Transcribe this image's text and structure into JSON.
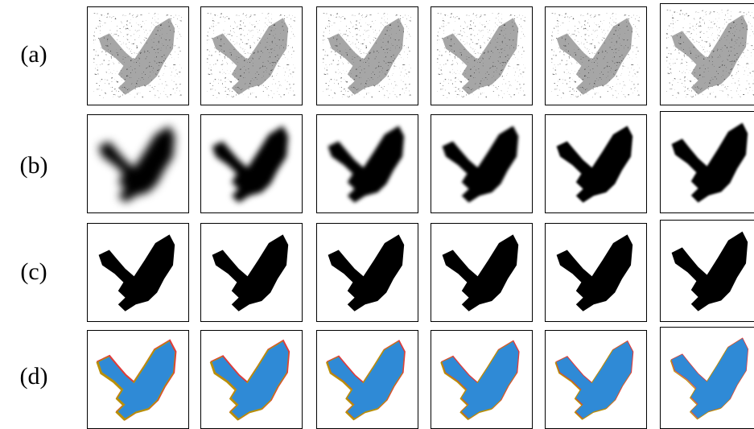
{
  "rows": [
    {
      "label": "(a)"
    },
    {
      "label": "(b)"
    },
    {
      "label": "(c)"
    },
    {
      "label": "(d)"
    }
  ]
}
